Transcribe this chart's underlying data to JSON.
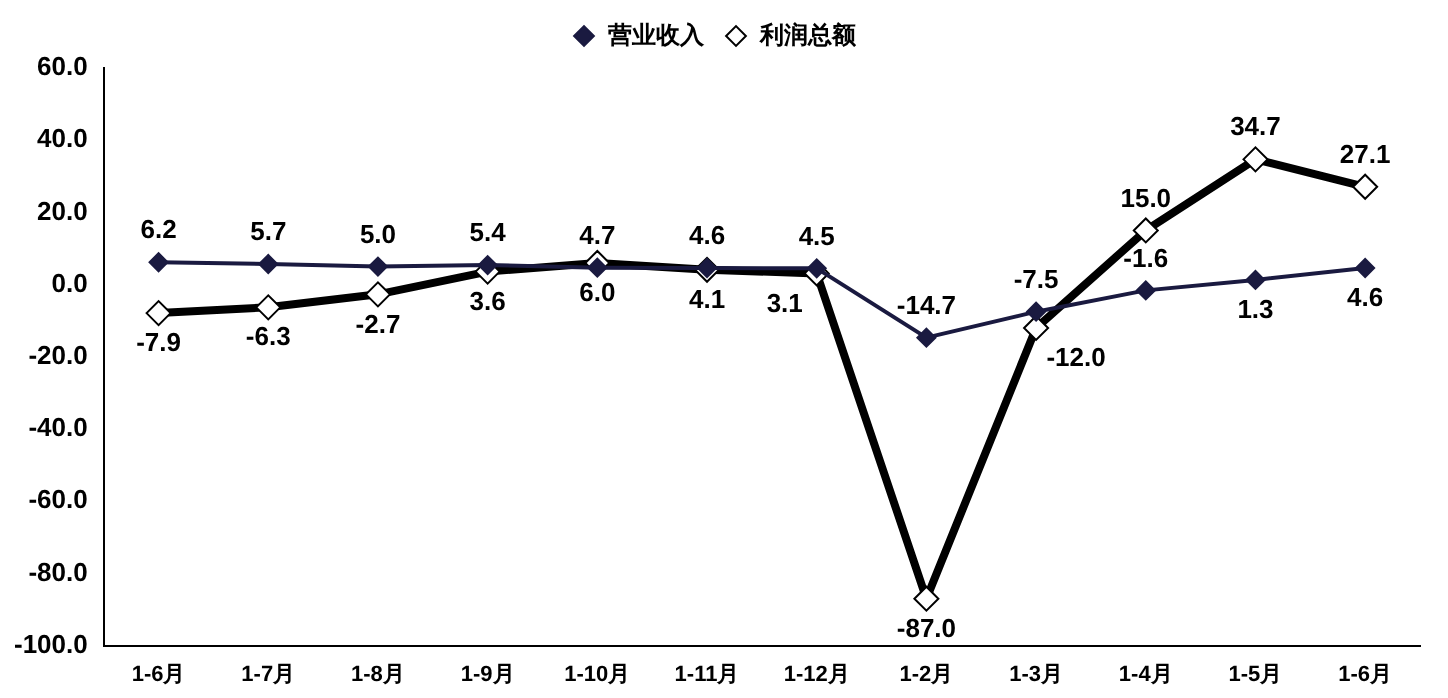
{
  "chart_data": {
    "type": "line",
    "categories": [
      "1-6月",
      "1-7月",
      "1-8月",
      "1-9月",
      "1-10月",
      "1-11月",
      "1-12月",
      "1-2月",
      "1-3月",
      "1-4月",
      "1-5月",
      "1-6月"
    ],
    "series": [
      {
        "name": "营业收入",
        "color": "#1a1a40",
        "values": [
          6.2,
          5.7,
          5.0,
          5.4,
          4.7,
          4.6,
          4.5,
          -14.7,
          -7.5,
          -1.6,
          1.3,
          4.6
        ],
        "value_labels": [
          "6.2",
          "5.7",
          "5.0",
          "5.4",
          "4.7",
          "4.6",
          "4.5",
          "-14.7",
          "-7.5",
          "-1.6",
          "1.3",
          "4.6"
        ]
      },
      {
        "name": "利润总额",
        "color": "#000000",
        "values": [
          -7.9,
          -6.3,
          -2.7,
          3.6,
          6.0,
          4.1,
          3.1,
          -87.0,
          -12.0,
          15.0,
          34.7,
          27.1
        ],
        "value_labels": [
          "-7.9",
          "-6.3",
          "-2.7",
          "3.6",
          "6.0",
          "4.1",
          "3.1",
          "-87.0",
          "-12.0",
          "15.0",
          "34.7",
          "27.1"
        ]
      }
    ],
    "ylim": [
      -100,
      60
    ],
    "yticks": [
      {
        "value": -100,
        "label": "-100.0"
      },
      {
        "value": -80,
        "label": "-80.0"
      },
      {
        "value": -60,
        "label": "-60.0"
      },
      {
        "value": -40,
        "label": "-40.0"
      },
      {
        "value": -20,
        "label": "-20.0"
      },
      {
        "value": 0,
        "label": "0.0"
      },
      {
        "value": 20,
        "label": "20.0"
      },
      {
        "value": 40,
        "label": "40.0"
      },
      {
        "value": 60,
        "label": "60.0"
      }
    ],
    "grid": false,
    "legend": "top",
    "marker": "diamond",
    "line_style": "solid"
  }
}
